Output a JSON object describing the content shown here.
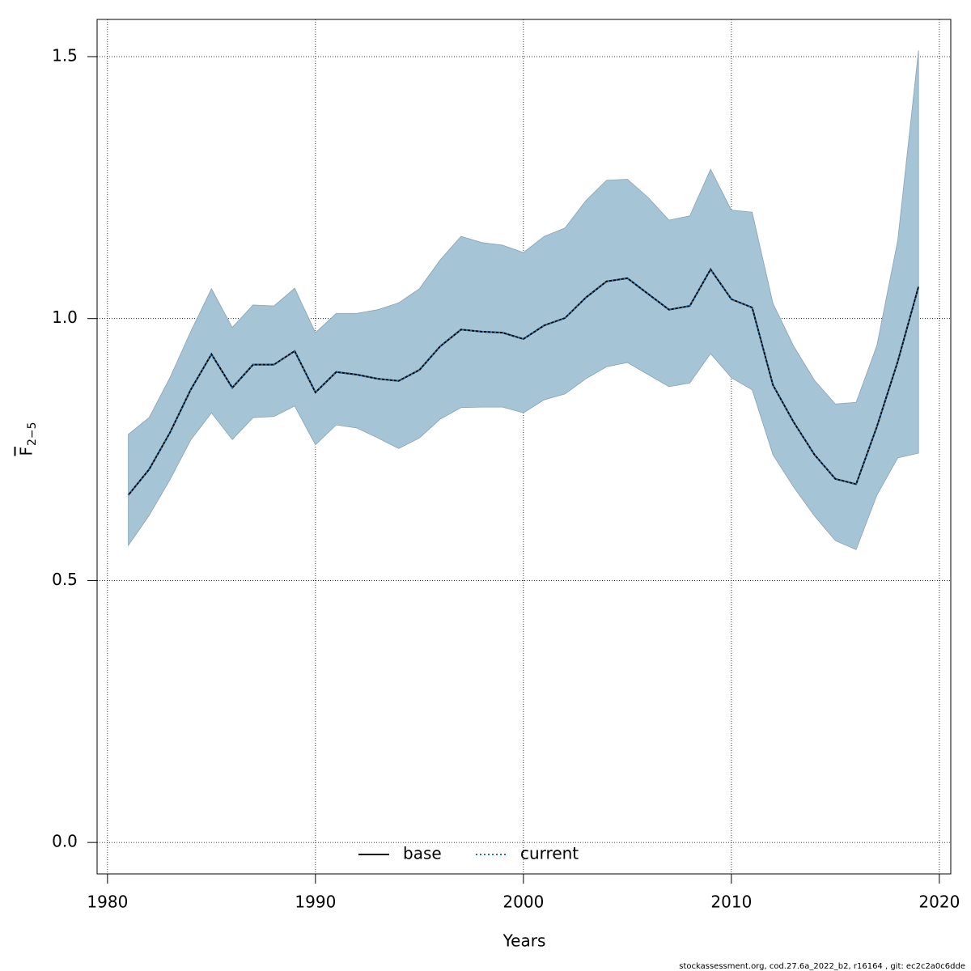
{
  "chart_data": {
    "type": "line",
    "x_label": "Years",
    "y_label": "F",
    "y_label_sub": "2−5",
    "footer": "stockassessment.org, cod.27.6a_2022_b2, r16164 , git: ec2c2a0c6dde",
    "x": [
      1981,
      1982,
      1983,
      1984,
      1985,
      1986,
      1987,
      1988,
      1989,
      1990,
      1991,
      1992,
      1993,
      1994,
      1995,
      1996,
      1997,
      1998,
      1999,
      2000,
      2001,
      2002,
      2003,
      2004,
      2005,
      2006,
      2007,
      2008,
      2009,
      2010,
      2011,
      2012,
      2013,
      2014,
      2015,
      2016,
      2017,
      2018,
      2019
    ],
    "series": [
      {
        "name": "base",
        "color": "#000000",
        "dash": "solid",
        "values": [
          0.663,
          0.712,
          0.782,
          0.864,
          0.932,
          0.868,
          0.912,
          0.912,
          0.938,
          0.859,
          0.898,
          0.893,
          0.885,
          0.881,
          0.902,
          0.947,
          0.979,
          0.975,
          0.973,
          0.961,
          0.987,
          1.001,
          1.04,
          1.071,
          1.077,
          1.047,
          1.017,
          1.024,
          1.094,
          1.037,
          1.021,
          0.873,
          0.802,
          0.74,
          0.694,
          0.684,
          0.794,
          0.918,
          1.061
        ]
      },
      {
        "name": "current",
        "color": "#1f6fa8",
        "dash": "dotted",
        "values": [
          0.663,
          0.712,
          0.782,
          0.864,
          0.932,
          0.868,
          0.912,
          0.912,
          0.938,
          0.859,
          0.898,
          0.893,
          0.885,
          0.881,
          0.902,
          0.947,
          0.979,
          0.975,
          0.973,
          0.961,
          0.987,
          1.001,
          1.04,
          1.071,
          1.077,
          1.047,
          1.017,
          1.024,
          1.094,
          1.037,
          1.021,
          0.873,
          0.802,
          0.74,
          0.694,
          0.684,
          0.794,
          0.918,
          1.061
        ]
      }
    ],
    "band": {
      "color": "#a5c4d5",
      "upper": [
        0.779,
        0.811,
        0.887,
        0.975,
        1.057,
        0.983,
        1.026,
        1.024,
        1.058,
        0.973,
        1.01,
        1.01,
        1.017,
        1.03,
        1.057,
        1.112,
        1.157,
        1.145,
        1.14,
        1.126,
        1.157,
        1.173,
        1.225,
        1.264,
        1.266,
        1.231,
        1.188,
        1.196,
        1.285,
        1.207,
        1.203,
        1.029,
        0.947,
        0.882,
        0.837,
        0.84,
        0.949,
        1.149,
        1.512
      ],
      "lower": [
        0.567,
        0.624,
        0.692,
        0.768,
        0.82,
        0.769,
        0.811,
        0.813,
        0.833,
        0.759,
        0.797,
        0.791,
        0.772,
        0.752,
        0.772,
        0.808,
        0.83,
        0.831,
        0.831,
        0.82,
        0.845,
        0.856,
        0.885,
        0.908,
        0.916,
        0.893,
        0.87,
        0.877,
        0.933,
        0.887,
        0.864,
        0.74,
        0.678,
        0.623,
        0.576,
        0.559,
        0.663,
        0.734,
        0.743
      ]
    },
    "xlim": [
      1979.5,
      2020.55
    ],
    "ylim": [
      -0.06,
      1.571
    ],
    "xticks": [
      1980,
      1990,
      2000,
      2010,
      2020
    ],
    "yticks": [
      {
        "value": 0,
        "label": "0.0"
      },
      0.5,
      {
        "value": 1,
        "label": "1.0"
      },
      1.5
    ],
    "grid": true,
    "legend": "bottom"
  }
}
